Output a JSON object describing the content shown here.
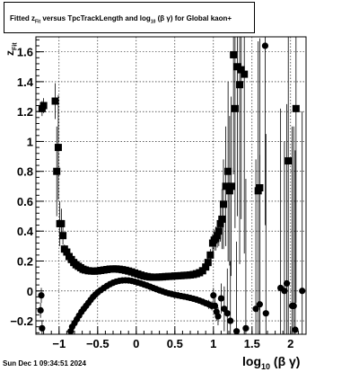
{
  "header": {
    "title_prefix": "Fitted  z",
    "title_sub": "Fit",
    "title_middle": "  versus TpcTrackLength and log",
    "title_sub2": "10",
    "title_suffix": " (β  γ) for Global kaon+"
  },
  "footer": {
    "timestamp": "Sun Dec  1 09:34:51 2024"
  },
  "axes": {
    "ylabel_main": "z",
    "ylabel_sub": "Fit",
    "xlabel_main": "log",
    "xlabel_sub": "10",
    "xlabel_suffix": "(β γ)"
  },
  "chart_data": {
    "type": "scatter",
    "title": "Fitted z_Fit versus TpcTrackLength and log10(βγ) for Global kaon+",
    "xlabel": "log10(β γ)",
    "ylabel": "z_Fit",
    "xlim": [
      -1.3,
      2.2
    ],
    "ylim": [
      -0.29,
      1.7
    ],
    "grid": true,
    "x_ticks": [
      -1,
      -0.5,
      0,
      0.5,
      1,
      1.5,
      2
    ],
    "x_tick_labels": [
      "−1",
      "−0.5",
      "0",
      "0.5",
      "1",
      "1.5",
      "2"
    ],
    "y_ticks": [
      -0.2,
      0,
      0.2,
      0.4,
      0.6,
      0.8,
      1,
      1.2,
      1.4,
      1.6
    ],
    "y_tick_labels": [
      "−0.2",
      "0",
      "0.2",
      "0.4",
      "0.6",
      "0.8",
      "1",
      "1.2",
      "1.4",
      "1.6"
    ],
    "series": [
      {
        "marker": "square",
        "points": [
          [
            -1.22,
            1.22,
            0.05
          ],
          [
            -1.2,
            1.24,
            0.05
          ],
          [
            -1.05,
            1.27,
            0.12
          ],
          [
            -1.03,
            0.8,
            0.3
          ],
          [
            -1.01,
            0.96,
            0.35
          ],
          [
            -0.99,
            0.45,
            0.15
          ],
          [
            -0.97,
            0.45,
            0.1
          ],
          [
            -0.95,
            0.37,
            0.06
          ],
          [
            -0.93,
            0.28,
            0.03
          ],
          [
            -0.9,
            0.26,
            0.02
          ],
          [
            -0.87,
            0.23,
            0.01
          ],
          [
            -0.84,
            0.21,
            0.01
          ],
          [
            -0.81,
            0.19,
            0.01
          ],
          [
            -0.78,
            0.175,
            0.01
          ],
          [
            -0.75,
            0.165,
            0.01
          ],
          [
            -0.72,
            0.155,
            0.01
          ],
          [
            -0.69,
            0.145,
            0.01
          ],
          [
            -0.66,
            0.14,
            0.01
          ],
          [
            -0.62,
            0.135,
            0.01
          ],
          [
            -0.58,
            0.133,
            0.01
          ],
          [
            -0.54,
            0.132,
            0.01
          ],
          [
            -0.5,
            0.134,
            0.01
          ],
          [
            -0.46,
            0.137,
            0.01
          ],
          [
            -0.42,
            0.14,
            0.01
          ],
          [
            -0.38,
            0.143,
            0.01
          ],
          [
            -0.34,
            0.146,
            0.01
          ],
          [
            -0.3,
            0.147,
            0.01
          ],
          [
            -0.26,
            0.147,
            0.01
          ],
          [
            -0.22,
            0.145,
            0.01
          ],
          [
            -0.18,
            0.142,
            0.01
          ],
          [
            -0.14,
            0.138,
            0.01
          ],
          [
            -0.1,
            0.133,
            0.01
          ],
          [
            -0.06,
            0.127,
            0.01
          ],
          [
            -0.02,
            0.12,
            0.01
          ],
          [
            0.02,
            0.113,
            0.01
          ],
          [
            0.06,
            0.106,
            0.01
          ],
          [
            0.1,
            0.1,
            0.01
          ],
          [
            0.14,
            0.096,
            0.01
          ],
          [
            0.18,
            0.093,
            0.01
          ],
          [
            0.22,
            0.092,
            0.01
          ],
          [
            0.26,
            0.092,
            0.01
          ],
          [
            0.3,
            0.093,
            0.01
          ],
          [
            0.34,
            0.094,
            0.01
          ],
          [
            0.38,
            0.096,
            0.01
          ],
          [
            0.42,
            0.097,
            0.01
          ],
          [
            0.46,
            0.098,
            0.01
          ],
          [
            0.5,
            0.1,
            0.01
          ],
          [
            0.54,
            0.101,
            0.01
          ],
          [
            0.58,
            0.102,
            0.01
          ],
          [
            0.62,
            0.104,
            0.01
          ],
          [
            0.66,
            0.105,
            0.01
          ],
          [
            0.7,
            0.107,
            0.01
          ],
          [
            0.74,
            0.11,
            0.01
          ],
          [
            0.78,
            0.115,
            0.01
          ],
          [
            0.82,
            0.122,
            0.01
          ],
          [
            0.86,
            0.135,
            0.02
          ],
          [
            0.9,
            0.16,
            0.02
          ],
          [
            0.93,
            0.19,
            0.03
          ],
          [
            0.96,
            0.24,
            0.04
          ],
          [
            0.99,
            0.32,
            0.06
          ],
          [
            1.01,
            0.34,
            0.07
          ],
          [
            1.03,
            0.35,
            0.08
          ],
          [
            1.05,
            0.37,
            0.08
          ],
          [
            1.07,
            0.4,
            0.1
          ],
          [
            1.09,
            0.45,
            0.12
          ],
          [
            1.11,
            0.48,
            0.2
          ],
          [
            1.13,
            0.58,
            0.3
          ],
          [
            1.16,
            0.7,
            0.4
          ],
          [
            1.19,
            0.8,
            0.6
          ],
          [
            1.21,
            0.67,
            0.5
          ],
          [
            1.23,
            0.7,
            0.6
          ],
          [
            1.26,
            1.58,
            0.8
          ],
          [
            1.28,
            1.22,
            0.8
          ],
          [
            1.31,
            1.5,
            1.0
          ],
          [
            1.34,
            1.38,
            1.2
          ],
          [
            1.36,
            1.48,
            1.0
          ],
          [
            1.4,
            1.45,
            1.2
          ],
          [
            1.58,
            0.67,
            1.0
          ],
          [
            1.6,
            0.69,
            1.0
          ],
          [
            1.97,
            0.87,
            1.2
          ],
          [
            2.07,
            1.22,
            1.3
          ]
        ]
      },
      {
        "marker": "circle",
        "points": [
          [
            -1.24,
            -0.13,
            0.05
          ],
          [
            -1.23,
            -0.03,
            0.05
          ],
          [
            -1.22,
            -0.25,
            0.05
          ],
          [
            -0.85,
            -0.27,
            0.03
          ],
          [
            -0.83,
            -0.24,
            0.02
          ],
          [
            -0.8,
            -0.215,
            0.02
          ],
          [
            -0.77,
            -0.19,
            0.01
          ],
          [
            -0.74,
            -0.165,
            0.01
          ],
          [
            -0.71,
            -0.14,
            0.01
          ],
          [
            -0.68,
            -0.12,
            0.01
          ],
          [
            -0.65,
            -0.1,
            0.01
          ],
          [
            -0.62,
            -0.08,
            0.01
          ],
          [
            -0.59,
            -0.06,
            0.01
          ],
          [
            -0.56,
            -0.04,
            0.01
          ],
          [
            -0.53,
            -0.025,
            0.01
          ],
          [
            -0.5,
            -0.01,
            0.01
          ],
          [
            -0.46,
            0.005,
            0.01
          ],
          [
            -0.42,
            0.02,
            0.01
          ],
          [
            -0.38,
            0.033,
            0.01
          ],
          [
            -0.34,
            0.045,
            0.01
          ],
          [
            -0.3,
            0.055,
            0.01
          ],
          [
            -0.26,
            0.062,
            0.01
          ],
          [
            -0.22,
            0.067,
            0.01
          ],
          [
            -0.18,
            0.07,
            0.01
          ],
          [
            -0.14,
            0.071,
            0.01
          ],
          [
            -0.1,
            0.07,
            0.01
          ],
          [
            -0.06,
            0.067,
            0.01
          ],
          [
            -0.02,
            0.062,
            0.01
          ],
          [
            0.02,
            0.056,
            0.01
          ],
          [
            0.06,
            0.05,
            0.01
          ],
          [
            0.1,
            0.043,
            0.01
          ],
          [
            0.14,
            0.036,
            0.01
          ],
          [
            0.18,
            0.028,
            0.01
          ],
          [
            0.22,
            0.02,
            0.01
          ],
          [
            0.26,
            0.012,
            0.01
          ],
          [
            0.3,
            0.004,
            0.01
          ],
          [
            0.34,
            -0.003,
            0.01
          ],
          [
            0.38,
            -0.01,
            0.01
          ],
          [
            0.42,
            -0.016,
            0.01
          ],
          [
            0.46,
            -0.021,
            0.01
          ],
          [
            0.5,
            -0.026,
            0.01
          ],
          [
            0.54,
            -0.03,
            0.01
          ],
          [
            0.58,
            -0.034,
            0.01
          ],
          [
            0.62,
            -0.038,
            0.01
          ],
          [
            0.66,
            -0.042,
            0.01
          ],
          [
            0.7,
            -0.047,
            0.01
          ],
          [
            0.74,
            -0.052,
            0.01
          ],
          [
            0.78,
            -0.058,
            0.01
          ],
          [
            0.82,
            -0.065,
            0.01
          ],
          [
            0.86,
            -0.073,
            0.02
          ],
          [
            0.9,
            -0.082,
            0.02
          ],
          [
            0.94,
            -0.09,
            0.03
          ],
          [
            0.98,
            -0.1,
            0.03
          ],
          [
            1.0,
            -0.03,
            0.05
          ],
          [
            1.02,
            -0.1,
            0.05
          ],
          [
            1.04,
            -0.14,
            0.06
          ],
          [
            1.06,
            -0.17,
            0.06
          ],
          [
            1.1,
            -0.05,
            0.1
          ],
          [
            1.14,
            -0.12,
            0.15
          ],
          [
            1.18,
            -0.15,
            0.3
          ],
          [
            1.22,
            -0.2,
            0.4
          ],
          [
            1.3,
            -0.27,
            0.6
          ],
          [
            1.42,
            -0.25,
            1.0
          ],
          [
            1.55,
            -0.12,
            1.0
          ],
          [
            1.6,
            -0.09,
            1.0
          ],
          [
            1.67,
            1.64,
            1.2
          ],
          [
            1.68,
            -0.15,
            1.2
          ],
          [
            1.87,
            0.02,
            1.2
          ],
          [
            1.92,
            0.0,
            1.0
          ],
          [
            1.95,
            0.05,
            1.2
          ],
          [
            2.02,
            -0.1,
            1.2
          ],
          [
            2.04,
            -0.1,
            1.2
          ],
          [
            2.06,
            -0.26,
            1.2
          ],
          [
            2.15,
            0.0,
            1.2
          ]
        ]
      }
    ]
  }
}
